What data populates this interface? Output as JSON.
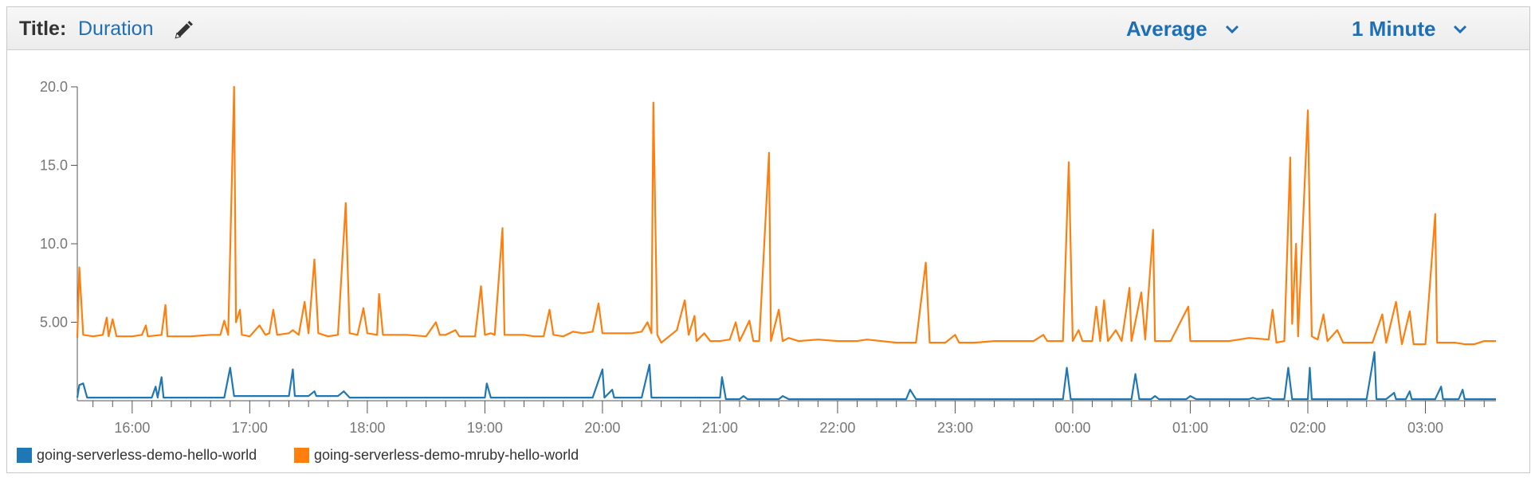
{
  "header": {
    "title_label": "Title:",
    "title_value": "Duration",
    "edit_icon": "pencil-icon",
    "statistic": "Average",
    "period": "1 Minute",
    "accent_color": "#1f6fb5"
  },
  "chart_data": {
    "type": "line",
    "x_axis": {
      "type": "time",
      "start": "15:32",
      "end": "03:36",
      "tick_labels": [
        "16:00",
        "17:00",
        "18:00",
        "19:00",
        "20:00",
        "21:00",
        "22:00",
        "23:00",
        "00:00",
        "01:00",
        "02:00",
        "03:00"
      ]
    },
    "y_axis": {
      "min": 0,
      "max": 20,
      "tick_labels": [
        "20.0",
        "15.0",
        "10.0",
        "5.00"
      ],
      "tick_values": [
        20,
        15,
        10,
        5
      ]
    },
    "legend_position": "bottom-left",
    "series": [
      {
        "name": "going-serverless-demo-hello-world",
        "color": "#1f77b4",
        "points": [
          [
            "15:32",
            0.2
          ],
          [
            "15:33",
            1
          ],
          [
            "15:35",
            1.1
          ],
          [
            "15:37",
            0.2
          ],
          [
            "15:45",
            0.2
          ],
          [
            "16:00",
            0.2
          ],
          [
            "16:10",
            0.2
          ],
          [
            "16:12",
            0.9
          ],
          [
            "16:13",
            0.2
          ],
          [
            "16:15",
            1.5
          ],
          [
            "16:16",
            0.2
          ],
          [
            "16:30",
            0.2
          ],
          [
            "16:45",
            0.2
          ],
          [
            "16:47",
            0.2
          ],
          [
            "16:50",
            2.1
          ],
          [
            "16:52",
            0.3
          ],
          [
            "17:10",
            0.3
          ],
          [
            "17:20",
            0.3
          ],
          [
            "17:22",
            2
          ],
          [
            "17:23",
            0.3
          ],
          [
            "17:30",
            0.3
          ],
          [
            "17:33",
            0.6
          ],
          [
            "17:34",
            0.3
          ],
          [
            "17:45",
            0.3
          ],
          [
            "17:48",
            0.6
          ],
          [
            "17:51",
            0.2
          ],
          [
            "18:00",
            0.2
          ],
          [
            "18:30",
            0.2
          ],
          [
            "19:00",
            0.2
          ],
          [
            "19:01",
            1.1
          ],
          [
            "19:03",
            0.2
          ],
          [
            "19:20",
            0.2
          ],
          [
            "19:40",
            0.2
          ],
          [
            "19:55",
            0.2
          ],
          [
            "20:00",
            2
          ],
          [
            "20:01",
            0.2
          ],
          [
            "20:05",
            0.7
          ],
          [
            "20:06",
            0.2
          ],
          [
            "20:20",
            0.2
          ],
          [
            "20:24",
            2.3
          ],
          [
            "20:25",
            0.2
          ],
          [
            "20:35",
            0.2
          ],
          [
            "21:00",
            0.2
          ],
          [
            "21:01",
            1.5
          ],
          [
            "21:03",
            0.1
          ],
          [
            "21:10",
            0.1
          ],
          [
            "21:12",
            0.3
          ],
          [
            "21:14",
            0.1
          ],
          [
            "21:30",
            0.1
          ],
          [
            "21:32",
            0.3
          ],
          [
            "21:35",
            0.1
          ],
          [
            "22:00",
            0.1
          ],
          [
            "22:30",
            0.1
          ],
          [
            "22:35",
            0.1
          ],
          [
            "22:37",
            0.7
          ],
          [
            "22:40",
            0.1
          ],
          [
            "23:00",
            0.1
          ],
          [
            "23:30",
            0.1
          ],
          [
            "23:40",
            0.1
          ],
          [
            "23:50",
            0.1
          ],
          [
            "23:55",
            0.1
          ],
          [
            "23:57",
            2.1
          ],
          [
            "23:59",
            0.1
          ],
          [
            "00:30",
            0.1
          ],
          [
            "00:32",
            1.7
          ],
          [
            "00:34",
            0.1
          ],
          [
            "00:40",
            0.1
          ],
          [
            "00:42",
            0.3
          ],
          [
            "00:44",
            0.1
          ],
          [
            "00:50",
            0.1
          ],
          [
            "00:58",
            0.1
          ],
          [
            "01:00",
            0.3
          ],
          [
            "01:03",
            0.1
          ],
          [
            "01:15",
            0.1
          ],
          [
            "01:20",
            0.1
          ],
          [
            "01:30",
            0.1
          ],
          [
            "01:32",
            0.2
          ],
          [
            "01:34",
            0.1
          ],
          [
            "01:40",
            0.2
          ],
          [
            "01:42",
            0.1
          ],
          [
            "01:48",
            0.1
          ],
          [
            "01:50",
            2.1
          ],
          [
            "01:52",
            0.1
          ],
          [
            "02:00",
            0.1
          ],
          [
            "02:01",
            2.1
          ],
          [
            "02:02",
            0.1
          ],
          [
            "02:15",
            0.1
          ],
          [
            "02:30",
            0.1
          ],
          [
            "02:34",
            3.1
          ],
          [
            "02:35",
            0.1
          ],
          [
            "02:40",
            0.1
          ],
          [
            "02:44",
            0.5
          ],
          [
            "02:45",
            0.1
          ],
          [
            "02:50",
            0.1
          ],
          [
            "02:52",
            0.6
          ],
          [
            "02:53",
            0.1
          ],
          [
            "03:05",
            0.1
          ],
          [
            "03:08",
            0.9
          ],
          [
            "03:09",
            0.1
          ],
          [
            "03:17",
            0.1
          ],
          [
            "03:19",
            0.7
          ],
          [
            "03:20",
            0.1
          ],
          [
            "03:36",
            0.1
          ]
        ]
      },
      {
        "name": "going-serverless-demo-mruby-hello-world",
        "color": "#ff7f0e",
        "points": [
          [
            "15:32",
            4
          ],
          [
            "15:33",
            8.5
          ],
          [
            "15:35",
            4.2
          ],
          [
            "15:40",
            4.1
          ],
          [
            "15:45",
            4.2
          ],
          [
            "15:47",
            5.3
          ],
          [
            "15:48",
            4.1
          ],
          [
            "15:50",
            5.2
          ],
          [
            "15:52",
            4.1
          ],
          [
            "16:00",
            4.1
          ],
          [
            "16:05",
            4.2
          ],
          [
            "16:07",
            4.8
          ],
          [
            "16:08",
            4.1
          ],
          [
            "16:15",
            4.2
          ],
          [
            "16:17",
            6.1
          ],
          [
            "16:18",
            4.1
          ],
          [
            "16:30",
            4.1
          ],
          [
            "16:40",
            4.2
          ],
          [
            "16:45",
            4.2
          ],
          [
            "16:47",
            5.1
          ],
          [
            "16:49",
            4.2
          ],
          [
            "16:52",
            20
          ],
          [
            "16:53",
            5
          ],
          [
            "16:55",
            5.8
          ],
          [
            "16:56",
            4.2
          ],
          [
            "17:00",
            4.1
          ],
          [
            "17:05",
            4.8
          ],
          [
            "17:08",
            4.2
          ],
          [
            "17:10",
            4.3
          ],
          [
            "17:12",
            5.8
          ],
          [
            "17:14",
            4.2
          ],
          [
            "17:20",
            4.3
          ],
          [
            "17:22",
            4.5
          ],
          [
            "17:25",
            4.2
          ],
          [
            "17:28",
            6.3
          ],
          [
            "17:30",
            4.3
          ],
          [
            "17:33",
            9
          ],
          [
            "17:35",
            4.3
          ],
          [
            "17:40",
            4.1
          ],
          [
            "17:45",
            4.2
          ],
          [
            "17:49",
            12.6
          ],
          [
            "17:51",
            4.3
          ],
          [
            "17:55",
            4.2
          ],
          [
            "17:58",
            5.9
          ],
          [
            "18:00",
            4.3
          ],
          [
            "18:05",
            4.2
          ],
          [
            "18:06",
            6.8
          ],
          [
            "18:08",
            4.2
          ],
          [
            "18:20",
            4.2
          ],
          [
            "18:30",
            4.1
          ],
          [
            "18:35",
            5
          ],
          [
            "18:37",
            4.2
          ],
          [
            "18:40",
            4.2
          ],
          [
            "18:45",
            4.5
          ],
          [
            "18:47",
            4.1
          ],
          [
            "18:55",
            4.1
          ],
          [
            "18:58",
            7.3
          ],
          [
            "19:00",
            4.2
          ],
          [
            "19:03",
            4.3
          ],
          [
            "19:05",
            4.2
          ],
          [
            "19:09",
            11
          ],
          [
            "19:10",
            4.2
          ],
          [
            "19:20",
            4.2
          ],
          [
            "19:25",
            4.1
          ],
          [
            "19:30",
            4.1
          ],
          [
            "19:33",
            5.8
          ],
          [
            "19:35",
            4.2
          ],
          [
            "19:40",
            4.1
          ],
          [
            "19:45",
            4.4
          ],
          [
            "19:50",
            4.3
          ],
          [
            "19:55",
            4.4
          ],
          [
            "19:58",
            6.2
          ],
          [
            "20:00",
            4.3
          ],
          [
            "20:10",
            4.3
          ],
          [
            "20:15",
            4.3
          ],
          [
            "20:20",
            4.4
          ],
          [
            "20:23",
            5
          ],
          [
            "20:25",
            4.3
          ],
          [
            "20:26",
            19
          ],
          [
            "20:28",
            4.2
          ],
          [
            "20:30",
            3.7
          ],
          [
            "20:35",
            4.2
          ],
          [
            "20:38",
            4.5
          ],
          [
            "20:42",
            6.4
          ],
          [
            "20:44",
            4.2
          ],
          [
            "20:47",
            5.4
          ],
          [
            "20:48",
            3.8
          ],
          [
            "20:52",
            4.3
          ],
          [
            "20:55",
            3.8
          ],
          [
            "21:00",
            3.8
          ],
          [
            "21:05",
            3.9
          ],
          [
            "21:08",
            5
          ],
          [
            "21:10",
            3.8
          ],
          [
            "21:15",
            5.1
          ],
          [
            "21:17",
            3.8
          ],
          [
            "21:20",
            3.8
          ],
          [
            "21:25",
            15.8
          ],
          [
            "21:26",
            3.8
          ],
          [
            "21:30",
            5.8
          ],
          [
            "21:32",
            3.8
          ],
          [
            "21:35",
            4
          ],
          [
            "21:40",
            3.8
          ],
          [
            "21:50",
            3.9
          ],
          [
            "22:00",
            3.8
          ],
          [
            "22:10",
            3.8
          ],
          [
            "22:15",
            3.9
          ],
          [
            "22:30",
            3.7
          ],
          [
            "22:40",
            3.7
          ],
          [
            "22:45",
            8.8
          ],
          [
            "22:47",
            3.7
          ],
          [
            "22:55",
            3.7
          ],
          [
            "23:00",
            4.2
          ],
          [
            "23:02",
            3.7
          ],
          [
            "23:10",
            3.7
          ],
          [
            "23:20",
            3.8
          ],
          [
            "23:30",
            3.8
          ],
          [
            "23:40",
            3.8
          ],
          [
            "23:45",
            4.2
          ],
          [
            "23:47",
            3.8
          ],
          [
            "23:55",
            3.8
          ],
          [
            "23:58",
            15.2
          ],
          [
            "00:00",
            3.8
          ],
          [
            "00:03",
            4.5
          ],
          [
            "00:05",
            3.8
          ],
          [
            "00:10",
            3.8
          ],
          [
            "00:12",
            6
          ],
          [
            "00:14",
            3.8
          ],
          [
            "00:16",
            6.4
          ],
          [
            "00:18",
            3.8
          ],
          [
            "00:22",
            4.5
          ],
          [
            "00:25",
            3.8
          ],
          [
            "00:29",
            7.2
          ],
          [
            "00:30",
            3.8
          ],
          [
            "00:35",
            6.9
          ],
          [
            "00:37",
            3.9
          ],
          [
            "00:41",
            10.9
          ],
          [
            "00:42",
            3.8
          ],
          [
            "00:50",
            3.8
          ],
          [
            "00:59",
            6
          ],
          [
            "01:00",
            3.8
          ],
          [
            "01:10",
            3.8
          ],
          [
            "01:20",
            3.8
          ],
          [
            "01:30",
            4
          ],
          [
            "01:40",
            3.9
          ],
          [
            "01:42",
            5.8
          ],
          [
            "01:44",
            3.7
          ],
          [
            "01:48",
            3.8
          ],
          [
            "01:51",
            15.5
          ],
          [
            "01:52",
            4.9
          ],
          [
            "01:54",
            10
          ],
          [
            "01:55",
            4.1
          ],
          [
            "02:00",
            18.5
          ],
          [
            "02:02",
            4.1
          ],
          [
            "02:05",
            3.9
          ],
          [
            "02:08",
            5.5
          ],
          [
            "02:10",
            3.8
          ],
          [
            "02:15",
            4.5
          ],
          [
            "02:18",
            3.7
          ],
          [
            "02:25",
            3.7
          ],
          [
            "02:33",
            3.7
          ],
          [
            "02:38",
            5.5
          ],
          [
            "02:40",
            3.7
          ],
          [
            "02:45",
            6.3
          ],
          [
            "02:48",
            3.6
          ],
          [
            "02:52",
            5.7
          ],
          [
            "02:54",
            3.6
          ],
          [
            "03:00",
            3.6
          ],
          [
            "03:05",
            11.9
          ],
          [
            "03:06",
            3.7
          ],
          [
            "03:10",
            3.7
          ],
          [
            "03:15",
            3.7
          ],
          [
            "03:20",
            3.6
          ],
          [
            "03:25",
            3.6
          ],
          [
            "03:30",
            3.8
          ],
          [
            "03:36",
            3.8
          ]
        ]
      }
    ]
  }
}
